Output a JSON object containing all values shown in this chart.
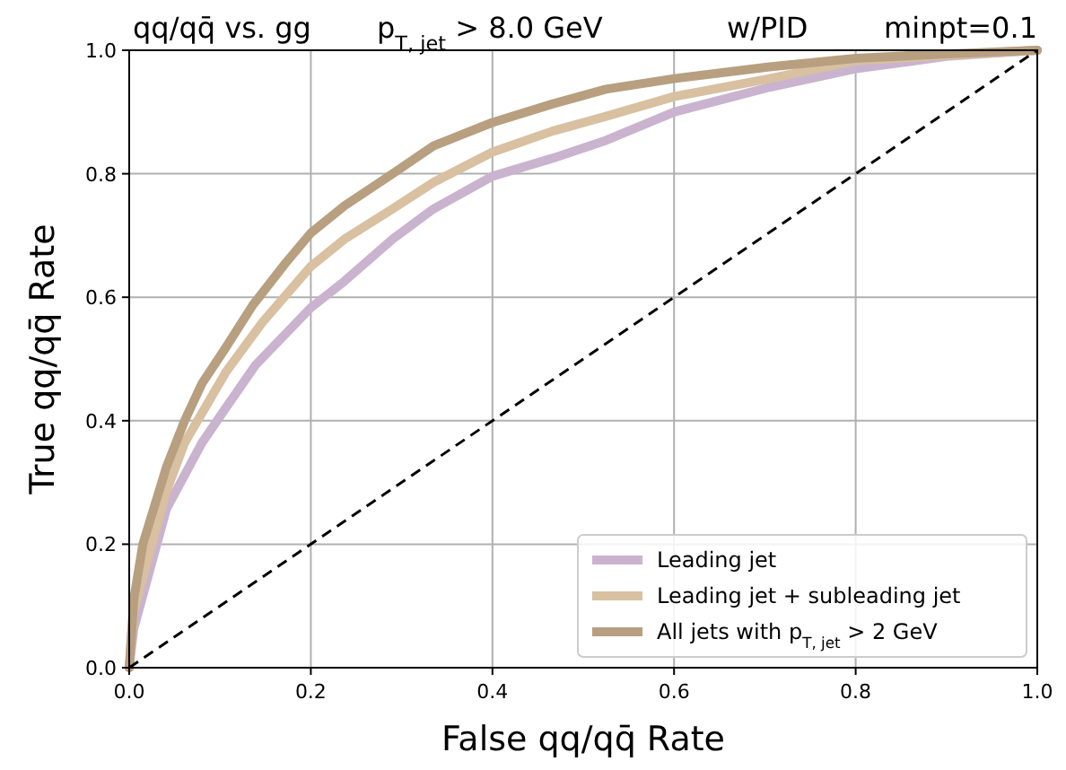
{
  "chart_data": {
    "type": "line",
    "title": "qq/qq̄ vs. gg",
    "annotations": [
      "p$_{T, jet}$ > 8.0 GeV",
      "w/PID",
      "minpt=0.1"
    ],
    "xlabel": "False qq/qq̄ Rate",
    "ylabel": "True qq/qq̄ Rate",
    "xlim": [
      0,
      1
    ],
    "ylim": [
      0,
      1
    ],
    "xticks": [
      {
        "value": 0,
        "label": "0.0"
      },
      0.2,
      0.4,
      0.6,
      0.8,
      {
        "value": 1,
        "label": "1.0"
      }
    ],
    "yticks": [
      {
        "value": 0,
        "label": "0.0"
      },
      0.2,
      0.4,
      0.6,
      0.8,
      {
        "value": 1,
        "label": "1.0"
      }
    ],
    "grid": true,
    "legend": "bottom right",
    "line_style": "solid",
    "marker": "none",
    "series": [
      {
        "name": "Leading jet",
        "color": "#c9b3cf",
        "x": [
          0,
          0.005,
          0.041,
          0.08,
          0.107,
          0.139,
          0.2,
          0.237,
          0.29,
          0.335,
          0.4,
          0.466,
          0.525,
          0.6,
          0.705,
          0.8,
          0.9,
          1
        ],
        "values": [
          0,
          0.063,
          0.257,
          0.364,
          0.422,
          0.49,
          0.583,
          0.626,
          0.694,
          0.743,
          0.796,
          0.825,
          0.854,
          0.9,
          0.94,
          0.97,
          0.99,
          1
        ]
      },
      {
        "name": "Leading jet + subleading jet",
        "color": "#d8c0a0",
        "x": [
          0,
          0.005,
          0.041,
          0.061,
          0.107,
          0.146,
          0.2,
          0.237,
          0.29,
          0.335,
          0.4,
          0.466,
          0.525,
          0.6,
          0.705,
          0.8,
          0.9,
          1
        ],
        "values": [
          0,
          0.092,
          0.286,
          0.364,
          0.48,
          0.558,
          0.65,
          0.694,
          0.743,
          0.786,
          0.835,
          0.869,
          0.893,
          0.925,
          0.954,
          0.983,
          0.992,
          1
        ]
      },
      {
        "name": "All jets with p$_{T, jet}$ > 2 GeV",
        "color": "#b89f80",
        "x": [
          0,
          0.005,
          0.015,
          0.041,
          0.061,
          0.08,
          0.107,
          0.136,
          0.172,
          0.2,
          0.237,
          0.29,
          0.335,
          0.4,
          0.466,
          0.525,
          0.6,
          0.705,
          0.8,
          0.9,
          1
        ],
        "values": [
          0,
          0.11,
          0.2,
          0.325,
          0.4,
          0.46,
          0.52,
          0.587,
          0.655,
          0.704,
          0.748,
          0.8,
          0.845,
          0.883,
          0.913,
          0.937,
          0.954,
          0.973,
          0.987,
          0.994,
          1
        ]
      },
      {
        "color": "#000000",
        "line_style": "dashed",
        "x": [
          0,
          1
        ],
        "values": [
          0,
          1
        ]
      }
    ]
  }
}
